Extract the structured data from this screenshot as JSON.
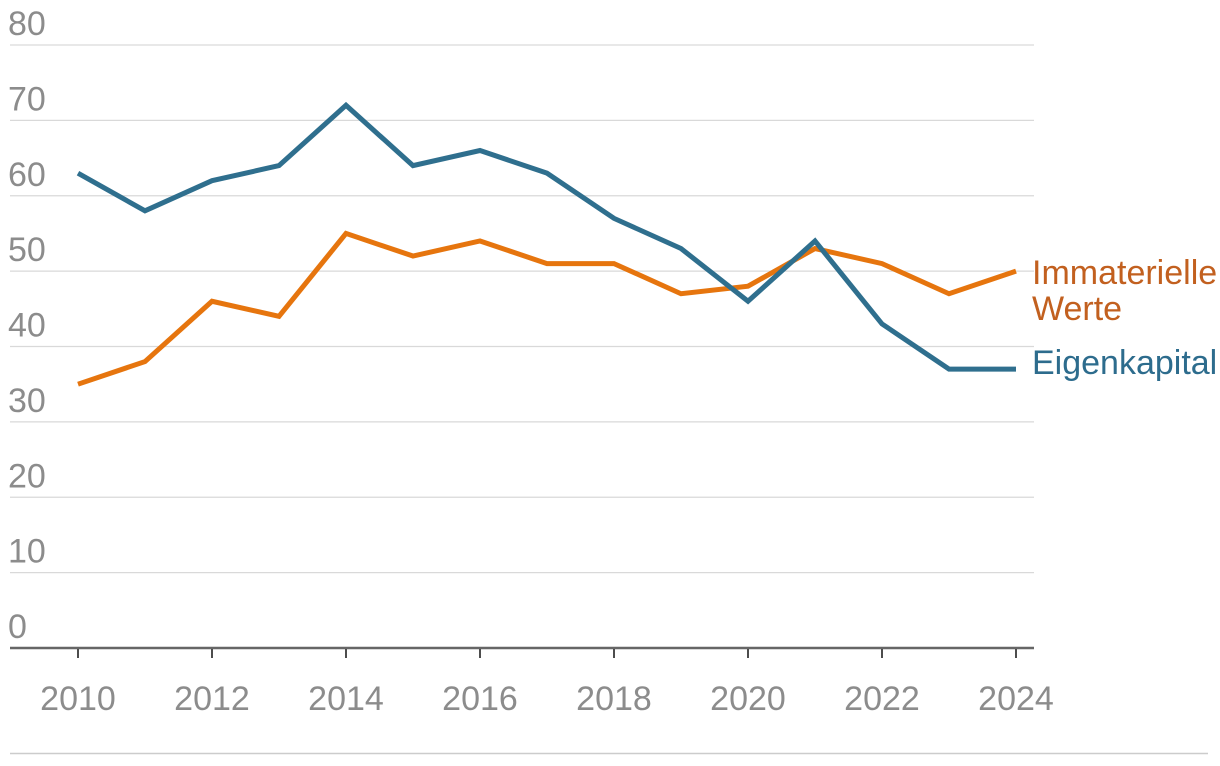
{
  "chart_data": {
    "type": "line",
    "title": "",
    "xlabel": "",
    "ylabel": "",
    "x": [
      2010,
      2011,
      2012,
      2013,
      2014,
      2015,
      2016,
      2017,
      2018,
      2019,
      2020,
      2021,
      2022,
      2023,
      2024
    ],
    "x_tick_labels": [
      "2010",
      "2012",
      "2014",
      "2016",
      "2018",
      "2020",
      "2022",
      "2024"
    ],
    "y_ticks": [
      0,
      10,
      20,
      30,
      40,
      50,
      60,
      70,
      80
    ],
    "y_tick_labels": [
      "0",
      "10",
      "20",
      "30",
      "40",
      "50",
      "60",
      "70",
      "80"
    ],
    "ylim": [
      0,
      80
    ],
    "grid": true,
    "legend_position": "right-of-line-ends",
    "series": [
      {
        "name": "Immaterielle Werte",
        "color": "#e6750e",
        "label_color": "#c2601f",
        "values": [
          35,
          38,
          46,
          44,
          55,
          52,
          54,
          51,
          51,
          47,
          48,
          53,
          51,
          47,
          50
        ]
      },
      {
        "name": "Eigenkapital",
        "color": "#2f6f8e",
        "label_color": "#2d6c8d",
        "values": [
          63,
          58,
          62,
          64,
          72,
          64,
          66,
          63,
          57,
          53,
          46,
          54,
          43,
          37,
          37
        ]
      }
    ]
  },
  "style": {
    "grid_color": "#d9d9d9",
    "axis_line_color": "#666666",
    "tick_color": "#4d4d4d",
    "axis_text_color": "#8c8c8c",
    "divider_color": "#cccccc",
    "background": "#ffffff"
  }
}
